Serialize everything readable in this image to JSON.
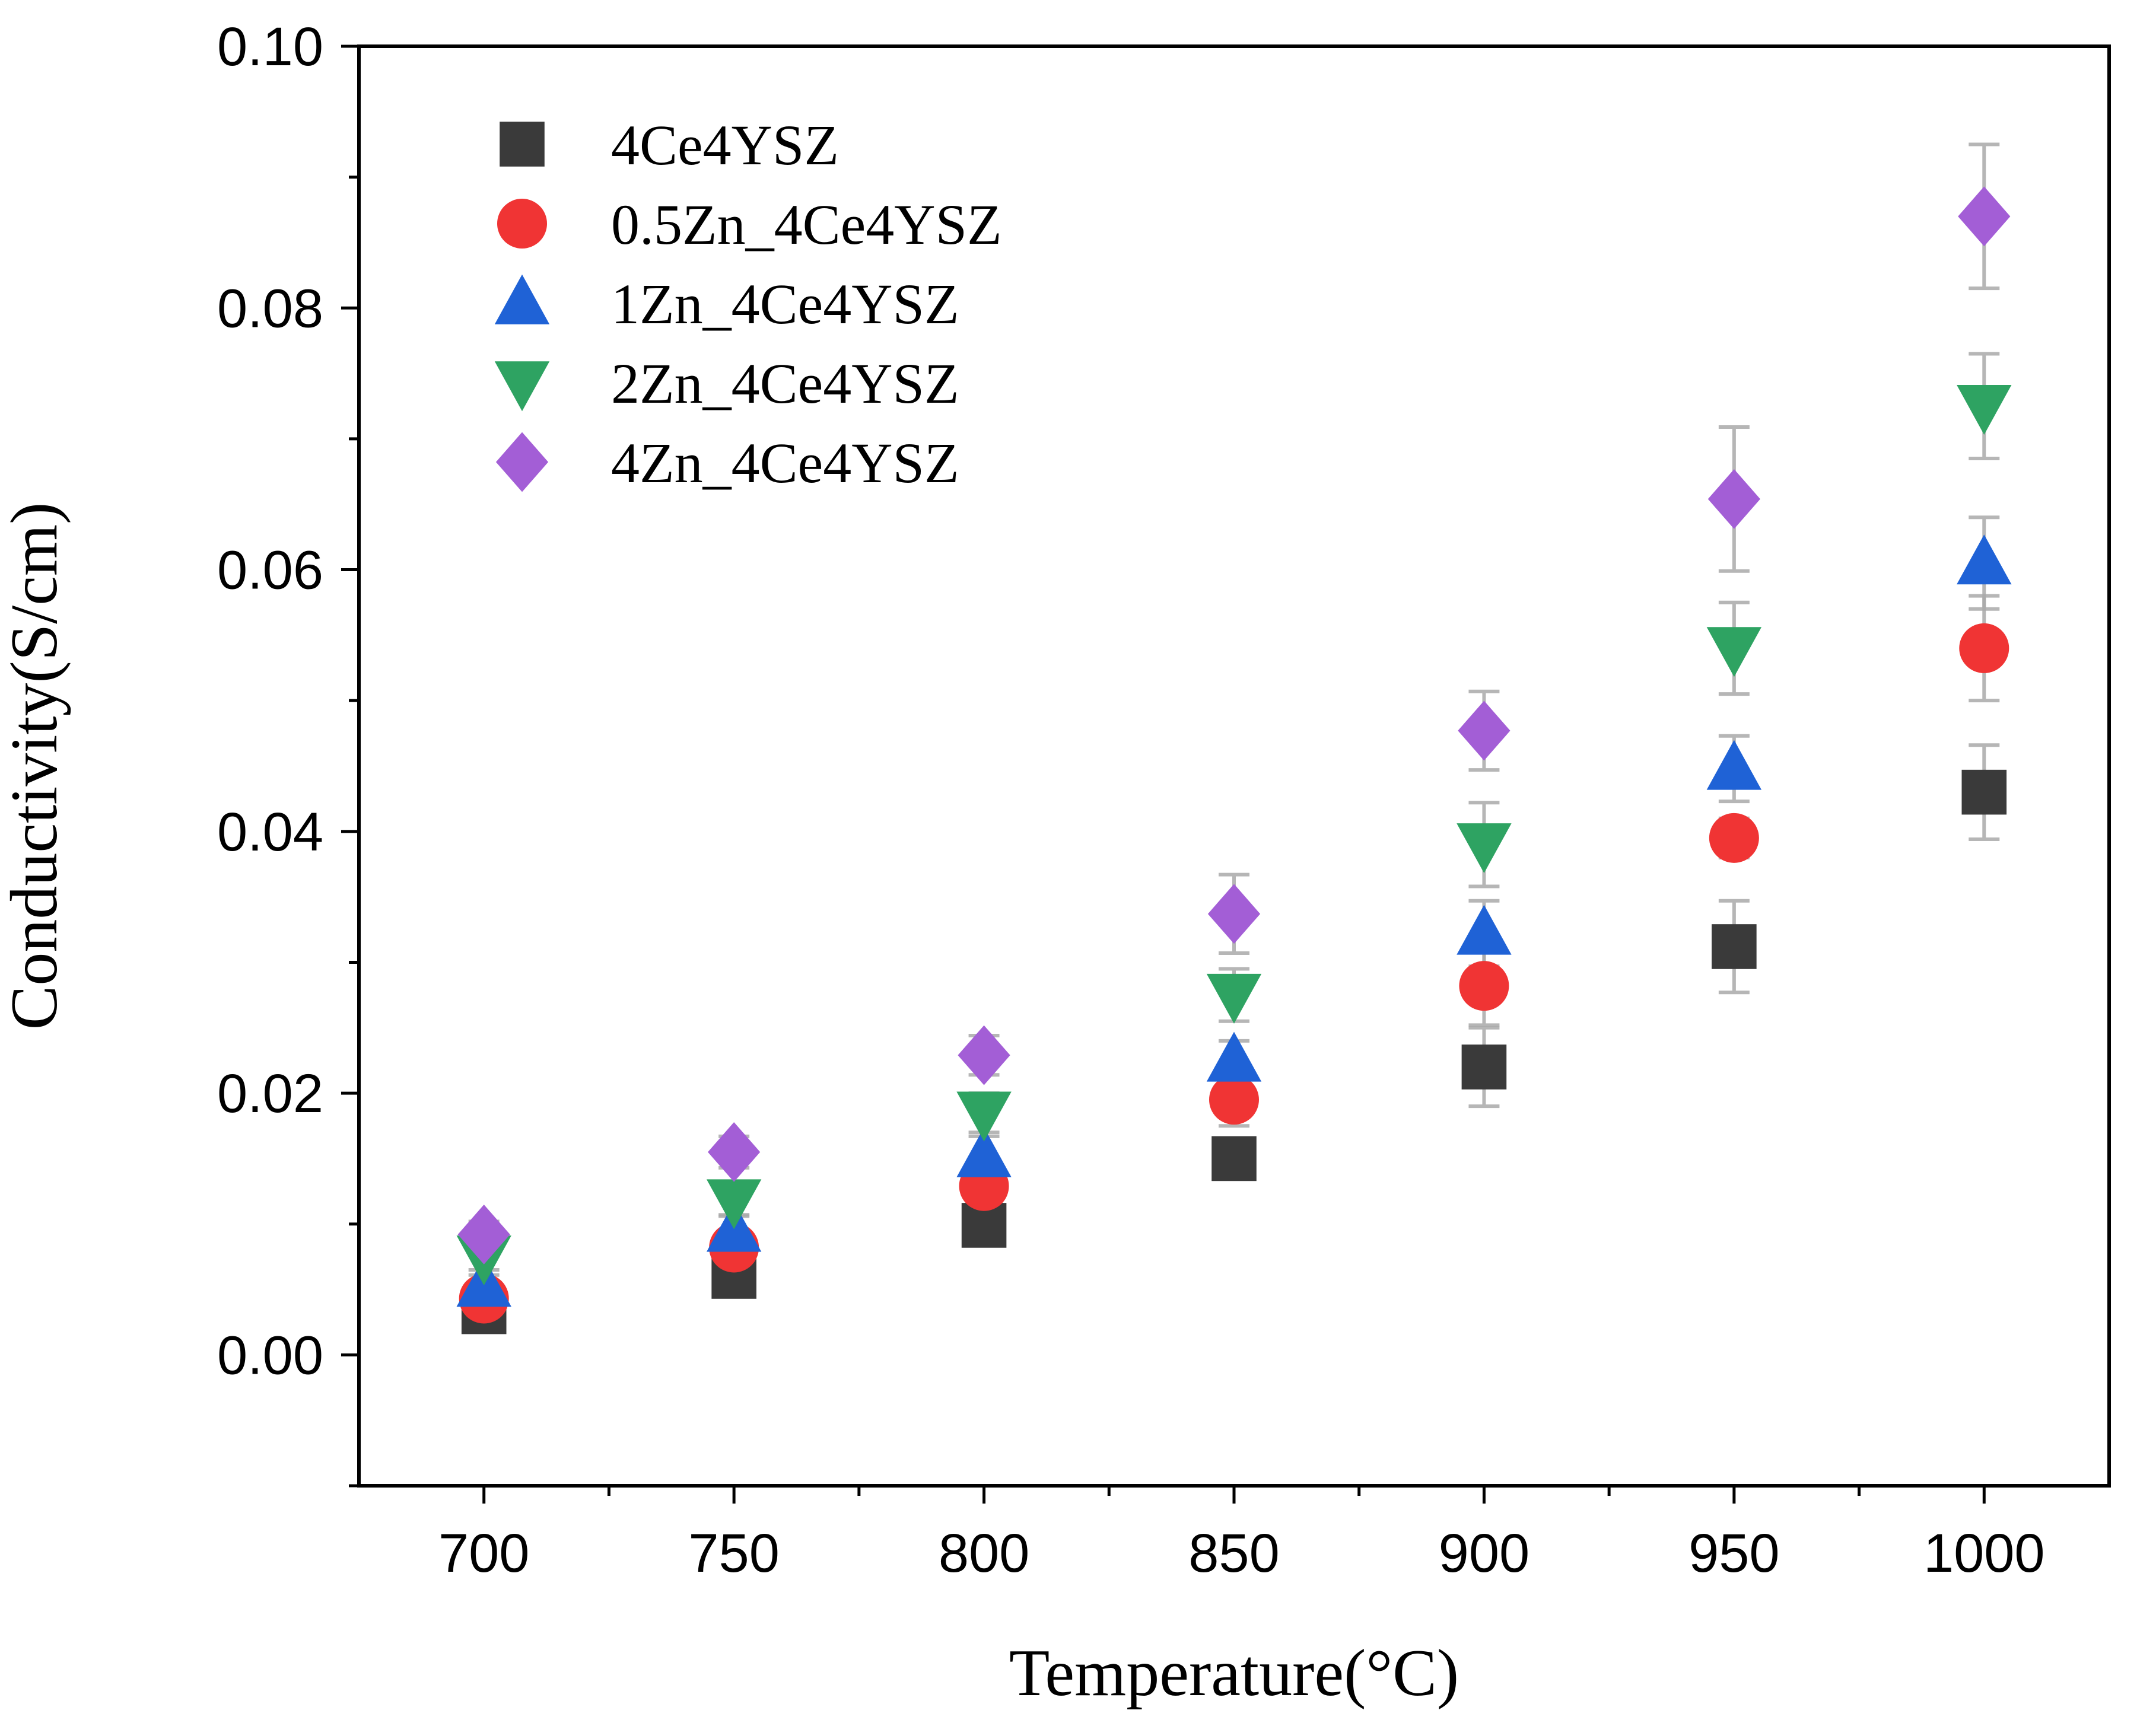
{
  "chart_data": {
    "type": "scatter",
    "title": "",
    "xlabel": "Temperature(°C)",
    "ylabel": "Conductivity(S/cm)",
    "xlim": [
      675,
      1025
    ],
    "ylim": [
      -0.01,
      0.1
    ],
    "x_ticks": [
      700,
      750,
      800,
      850,
      900,
      950,
      1000
    ],
    "x_tick_labels": [
      "700",
      "750",
      "800",
      "850",
      "900",
      "950",
      "1000"
    ],
    "y_ticks": [
      0.0,
      0.02,
      0.04,
      0.06,
      0.08,
      0.1
    ],
    "y_tick_labels": [
      "0.00",
      "0.02",
      "0.04",
      "0.06",
      "0.08",
      "0.10"
    ],
    "grid": false,
    "legend_position": "top-left",
    "x": [
      700,
      750,
      800,
      850,
      900,
      950,
      1000
    ],
    "series": [
      {
        "name": "4Ce4YSZ",
        "marker": "square",
        "color": "#3a3a3a",
        "values": [
          0.0033,
          0.006,
          0.0099,
          0.015,
          0.022,
          0.0312,
          0.043
        ],
        "errors": [
          0.0008,
          0.0012,
          0.0015,
          0.0015,
          0.003,
          0.0035,
          0.0036
        ]
      },
      {
        "name": "0.5Zn_4Ce4YSZ",
        "marker": "circle",
        "color": "#f03434",
        "values": [
          0.0043,
          0.0082,
          0.0129,
          0.0195,
          0.0282,
          0.0395,
          0.054
        ],
        "errors": [
          0.0008,
          0.0012,
          0.0015,
          0.002,
          0.003,
          0.0015,
          0.004
        ]
      },
      {
        "name": "1Zn_4Ce4YSZ",
        "marker": "triangle-up",
        "color": "#1f62d6",
        "values": [
          0.0053,
          0.0095,
          0.0152,
          0.0225,
          0.0322,
          0.0448,
          0.0605
        ],
        "errors": [
          0.0008,
          0.0012,
          0.0015,
          0.0015,
          0.0025,
          0.0025,
          0.0035
        ]
      },
      {
        "name": "2Zn_4Ce4YSZ",
        "marker": "triangle-down",
        "color": "#2ea362",
        "values": [
          0.0075,
          0.0118,
          0.0185,
          0.0275,
          0.039,
          0.054,
          0.0725
        ],
        "errors": [
          0.001,
          0.0012,
          0.0015,
          0.002,
          0.0032,
          0.0035,
          0.004
        ]
      },
      {
        "name": "4Zn_4Ce4YSZ",
        "marker": "diamond",
        "color": "#a35ed6",
        "values": [
          0.0092,
          0.0155,
          0.0229,
          0.0337,
          0.0477,
          0.0654,
          0.087
        ],
        "errors": [
          0.001,
          0.0012,
          0.0015,
          0.003,
          0.003,
          0.0055,
          0.0055
        ]
      }
    ]
  }
}
